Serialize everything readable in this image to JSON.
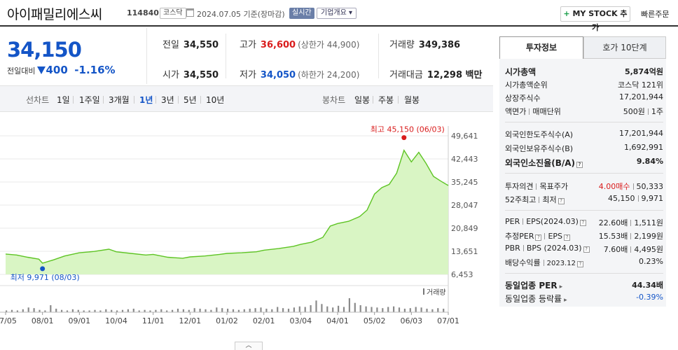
{
  "header": {
    "company_name": "아이패밀리에스씨",
    "code": "114840",
    "market": "코스닥",
    "date_text": "2024.07.05  기준(장마감)",
    "live_badge": "실시간",
    "company_info": "기업개요",
    "mystock_button": "MY STOCK 추가",
    "mystock_plus": "+",
    "quick_order": "빠른주문"
  },
  "price": {
    "current": "34,150",
    "change_label": "전일대비",
    "change_value": "400",
    "change_percent": "-1.16%",
    "color": "#1455c7"
  },
  "quote": {
    "prev_close_label": "전일",
    "prev_close": "34,550",
    "open_label": "시가",
    "open": "34,550",
    "high_label": "고가",
    "high": "36,600",
    "upper_limit": "(상한가 44,900)",
    "low_label": "저가",
    "low": "34,050",
    "lower_limit": "(하한가 24,200)",
    "volume_label": "거래량",
    "volume": "349,386",
    "amount_label": "거래대금",
    "amount": "12,298 백만"
  },
  "periods": {
    "line_label": "선차트",
    "line_items": [
      "1일",
      "1주일",
      "3개월",
      "1년",
      "3년",
      "5년",
      "10년"
    ],
    "active": "1년",
    "candle_label": "봉차트",
    "candle_items": [
      "일봉",
      "주봉",
      "월봉"
    ]
  },
  "chart_data": {
    "type": "area",
    "y_ticks": [
      "49,641",
      "42,443",
      "35,245",
      "28,047",
      "20,849",
      "13,651",
      "6,453"
    ],
    "ylim": [
      6453,
      49641
    ],
    "x_ticks": [
      "07/05",
      "08/01",
      "09/01",
      "10/04",
      "11/01",
      "12/01",
      "01/02",
      "02/01",
      "03/04",
      "04/01",
      "05/02",
      "06/03",
      "07/01"
    ],
    "high_annotation": "최고 45,150 (06/03)",
    "low_annotation": "최저 9,971 (08/03)",
    "volume_label": "거래량",
    "line_color": "#5ec424",
    "fill_color": "#d9f5c4",
    "series": [
      {
        "x": 0.0,
        "y": 12800
      },
      {
        "x": 0.3,
        "y": 12500
      },
      {
        "x": 0.6,
        "y": 11800
      },
      {
        "x": 0.9,
        "y": 11200
      },
      {
        "x": 1.0,
        "y": 9971
      },
      {
        "x": 1.3,
        "y": 11000
      },
      {
        "x": 1.6,
        "y": 12200
      },
      {
        "x": 2.0,
        "y": 13200
      },
      {
        "x": 2.4,
        "y": 13600
      },
      {
        "x": 2.8,
        "y": 14300
      },
      {
        "x": 3.0,
        "y": 13500
      },
      {
        "x": 3.4,
        "y": 13000
      },
      {
        "x": 3.8,
        "y": 12500
      },
      {
        "x": 4.0,
        "y": 12700
      },
      {
        "x": 4.4,
        "y": 11800
      },
      {
        "x": 4.8,
        "y": 11500
      },
      {
        "x": 5.0,
        "y": 11900
      },
      {
        "x": 5.4,
        "y": 12200
      },
      {
        "x": 5.8,
        "y": 12700
      },
      {
        "x": 6.0,
        "y": 13000
      },
      {
        "x": 6.4,
        "y": 13200
      },
      {
        "x": 6.8,
        "y": 13500
      },
      {
        "x": 7.0,
        "y": 14000
      },
      {
        "x": 7.4,
        "y": 14500
      },
      {
        "x": 7.8,
        "y": 15200
      },
      {
        "x": 8.0,
        "y": 15800
      },
      {
        "x": 8.3,
        "y": 16500
      },
      {
        "x": 8.6,
        "y": 18000
      },
      {
        "x": 8.8,
        "y": 21500
      },
      {
        "x": 9.0,
        "y": 22300
      },
      {
        "x": 9.3,
        "y": 23000
      },
      {
        "x": 9.6,
        "y": 24500
      },
      {
        "x": 9.8,
        "y": 26500
      },
      {
        "x": 10.0,
        "y": 31500
      },
      {
        "x": 10.2,
        "y": 33500
      },
      {
        "x": 10.4,
        "y": 34500
      },
      {
        "x": 10.6,
        "y": 38000
      },
      {
        "x": 10.8,
        "y": 45150
      },
      {
        "x": 11.0,
        "y": 41500
      },
      {
        "x": 11.2,
        "y": 44500
      },
      {
        "x": 11.4,
        "y": 41000
      },
      {
        "x": 11.6,
        "y": 37000
      },
      {
        "x": 11.8,
        "y": 35500
      },
      {
        "x": 12.0,
        "y": 34150
      }
    ],
    "volume": [
      3,
      4,
      3,
      5,
      8,
      7,
      4,
      3,
      12,
      6,
      4,
      3,
      5,
      4,
      3,
      3,
      4,
      3,
      5,
      4,
      3,
      4,
      5,
      6,
      3,
      4,
      3,
      4,
      5,
      3,
      4,
      6,
      5,
      4,
      7,
      6,
      5,
      4,
      8,
      7,
      6,
      5,
      4,
      5,
      6,
      7,
      8,
      6,
      5,
      9,
      7,
      6,
      8,
      10,
      9,
      12,
      20,
      14,
      10,
      8,
      11,
      9,
      24,
      16,
      12,
      10,
      9,
      8,
      7,
      9,
      10,
      8,
      6,
      7,
      9,
      8,
      6,
      5,
      7,
      6
    ]
  },
  "tabs": {
    "invest": "투자정보",
    "orderbook": "호가 10단계"
  },
  "invest": {
    "market_cap_label": "시가총액",
    "market_cap": "5,874억원",
    "rank_label": "시가총액순위",
    "rank": "코스닥 121위",
    "shares_label": "상장주식수",
    "shares": "17,201,944",
    "par_label_a": "액면가",
    "par_label_b": "매매단위",
    "par": "500원",
    "unit": "1주",
    "foreign_limit_label": "외국인한도주식수(A)",
    "foreign_limit": "17,201,944",
    "foreign_hold_label": "외국인보유주식수(B)",
    "foreign_hold": "1,692,991",
    "foreign_ratio_label": "외국인소진율(B/A)",
    "foreign_ratio": "9.84%",
    "opinion_label_a": "투자의견",
    "opinion_label_b": "목표주가",
    "opinion": "4.00매수",
    "target": "50,333",
    "week52_label_a": "52주최고",
    "week52_label_b": "최저",
    "week52_high": "45,150",
    "week52_low": "9,971",
    "per_label_a": "PER",
    "per_label_b": "EPS(2024.03)",
    "per": "22.60배",
    "eps": "1,511원",
    "eper_label_a": "추정PER",
    "eper_label_b": "EPS",
    "eper": "15.53배",
    "eeps": "2,199원",
    "pbr_label_a": "PBR",
    "pbr_label_b": "BPS (2024.03)",
    "pbr": "7.60배",
    "bps": "4,495원",
    "div_label_a": "배당수익률",
    "div_label_b": "2023.12",
    "div": "0.23%",
    "ind_per_label": "동일업종 PER",
    "ind_per": "44.34배",
    "ind_rate_label": "동일업종 등락률",
    "ind_rate": "-0.39%"
  },
  "question_mark": "?",
  "caret": "▸",
  "collapse": "︿"
}
